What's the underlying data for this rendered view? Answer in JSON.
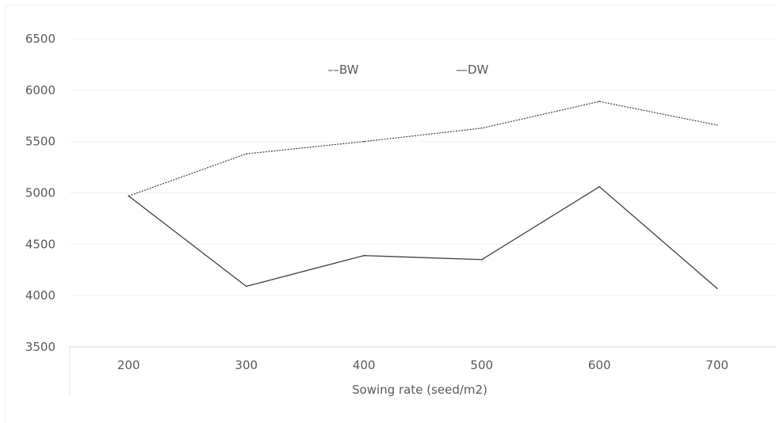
{
  "chart_data": {
    "type": "line",
    "title": "",
    "xlabel": "Sowing rate (seed/m2)",
    "ylabel": "",
    "categories": [
      "200",
      "300",
      "400",
      "500",
      "600",
      "700"
    ],
    "ylim": [
      3500,
      6500
    ],
    "yticks": [
      "3500",
      "4000",
      "4500",
      "5000",
      "5500",
      "6000",
      "6500"
    ],
    "grid": true,
    "legend_position": "top",
    "series": [
      {
        "name": "BW",
        "values": [
          4970,
          5380,
          5500,
          5630,
          5890,
          5660
        ],
        "style": "dotted",
        "color": "#404040"
      },
      {
        "name": "DW",
        "values": [
          4970,
          4090,
          4390,
          4350,
          5060,
          4070
        ],
        "style": "solid",
        "color": "#404040"
      }
    ],
    "legend_labels": [
      "––BW",
      "—DW"
    ]
  }
}
